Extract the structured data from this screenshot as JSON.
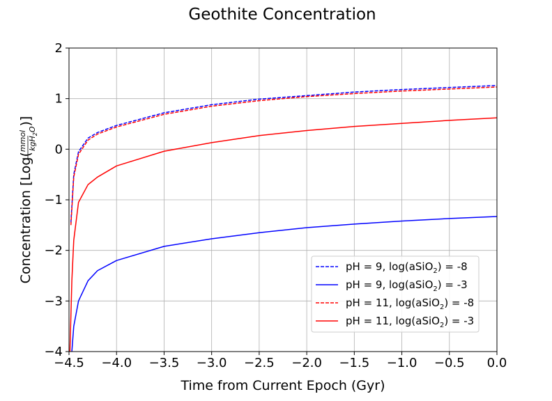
{
  "chart_data": {
    "type": "line",
    "title": "Geothite Concentration",
    "xlabel": "Time from Current Epoch (Gyr)",
    "ylabel": "Concentration [Log(mmol/kgH₂O)]",
    "ylabel_parts": {
      "prefix": "Concentration [Log(",
      "num": "mmol",
      "den": "kgH",
      "den_sub": "2",
      "den_tail": "O",
      "suffix": ")]"
    },
    "xlim": [
      -4.5,
      0.0
    ],
    "ylim": [
      -4,
      2
    ],
    "xticks": [
      "−4.5",
      "−4.0",
      "−3.5",
      "−3.0",
      "−2.5",
      "−2.0",
      "−1.5",
      "−1.0",
      "−0.5",
      "0.0"
    ],
    "xtick_values": [
      -4.5,
      -4.0,
      -3.5,
      -3.0,
      -2.5,
      -2.0,
      -1.5,
      -1.0,
      -0.5,
      0.0
    ],
    "yticks": [
      "2",
      "1",
      "0",
      "−1",
      "−2",
      "−3",
      "−4"
    ],
    "ytick_values": [
      2,
      1,
      0,
      -1,
      -2,
      -3,
      -4
    ],
    "grid": true,
    "legend_position": "lower-right",
    "series": [
      {
        "name": "pH = 9, log(aSiO2) = -8",
        "label_parts": {
          "pre": "pH = 9, log(aSiO",
          "sub": "2",
          "post": ") = -8"
        },
        "color": "#0000ff",
        "style": "dashed",
        "x": [
          -4.48,
          -4.45,
          -4.4,
          -4.3,
          -4.2,
          -4.0,
          -3.5,
          -3.0,
          -2.5,
          -2.0,
          -1.5,
          -1.0,
          -0.5,
          0.0
        ],
        "y": [
          -1.45,
          -0.5,
          -0.05,
          0.22,
          0.33,
          0.47,
          0.72,
          0.88,
          0.99,
          1.06,
          1.13,
          1.18,
          1.22,
          1.26
        ]
      },
      {
        "name": "pH = 9, log(aSiO2) = -3",
        "label_parts": {
          "pre": "pH = 9, log(aSiO",
          "sub": "2",
          "post": ") = -3"
        },
        "color": "#0000ff",
        "style": "solid",
        "x": [
          -4.47,
          -4.45,
          -4.4,
          -4.3,
          -4.2,
          -4.0,
          -3.5,
          -3.0,
          -2.5,
          -2.0,
          -1.5,
          -1.0,
          -0.5,
          0.0
        ],
        "y": [
          -4.0,
          -3.5,
          -3.0,
          -2.6,
          -2.4,
          -2.2,
          -1.92,
          -1.77,
          -1.65,
          -1.55,
          -1.48,
          -1.42,
          -1.37,
          -1.33
        ]
      },
      {
        "name": "pH = 11, log(aSiO2) = -8",
        "label_parts": {
          "pre": "pH = 11, log(aSiO",
          "sub": "2",
          "post": ") = -8"
        },
        "color": "#ff0000",
        "style": "dashed",
        "x": [
          -4.48,
          -4.45,
          -4.4,
          -4.3,
          -4.2,
          -4.0,
          -3.5,
          -3.0,
          -2.5,
          -2.0,
          -1.5,
          -1.0,
          -0.5,
          0.0
        ],
        "y": [
          -1.5,
          -0.55,
          -0.1,
          0.18,
          0.3,
          0.44,
          0.69,
          0.85,
          0.96,
          1.04,
          1.1,
          1.15,
          1.19,
          1.23
        ]
      },
      {
        "name": "pH = 11, log(aSiO2) = -3",
        "label_parts": {
          "pre": "pH = 11, log(aSiO",
          "sub": "2",
          "post": ") = -3"
        },
        "color": "#ff0000",
        "style": "solid",
        "x": [
          -4.49,
          -4.47,
          -4.45,
          -4.4,
          -4.3,
          -4.2,
          -4.0,
          -3.5,
          -3.0,
          -2.5,
          -2.0,
          -1.5,
          -1.0,
          -0.5,
          0.0
        ],
        "y": [
          -4.0,
          -2.6,
          -1.8,
          -1.05,
          -0.7,
          -0.55,
          -0.33,
          -0.04,
          0.13,
          0.27,
          0.37,
          0.45,
          0.51,
          0.57,
          0.62
        ]
      }
    ]
  }
}
